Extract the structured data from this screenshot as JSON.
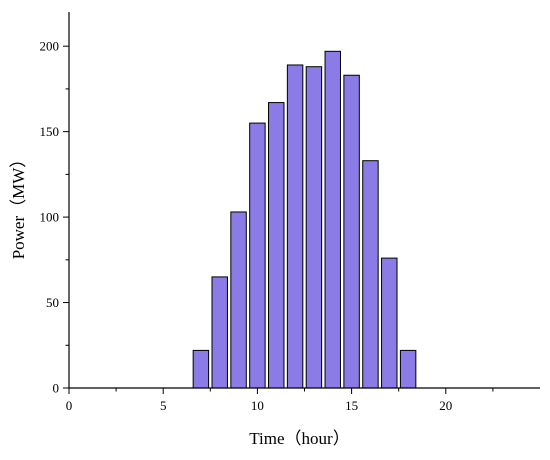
{
  "chart_data": {
    "type": "bar",
    "title": "",
    "xlabel": "Time（hour）",
    "ylabel": "Power（MW）",
    "xlim": [
      0,
      25
    ],
    "ylim": [
      0,
      220
    ],
    "xticks": [
      0,
      5,
      10,
      15,
      20
    ],
    "yticks": [
      0,
      50,
      100,
      150,
      200
    ],
    "x": [
      7,
      8,
      9,
      10,
      11,
      12,
      13,
      14,
      15,
      16,
      17,
      18
    ],
    "values": [
      22,
      65,
      103,
      155,
      167,
      189,
      188,
      197,
      183,
      133,
      76,
      22
    ],
    "bar_color": "#8B7BE6",
    "bar_edge_color": "#000000",
    "grid": false,
    "legend": "none"
  }
}
